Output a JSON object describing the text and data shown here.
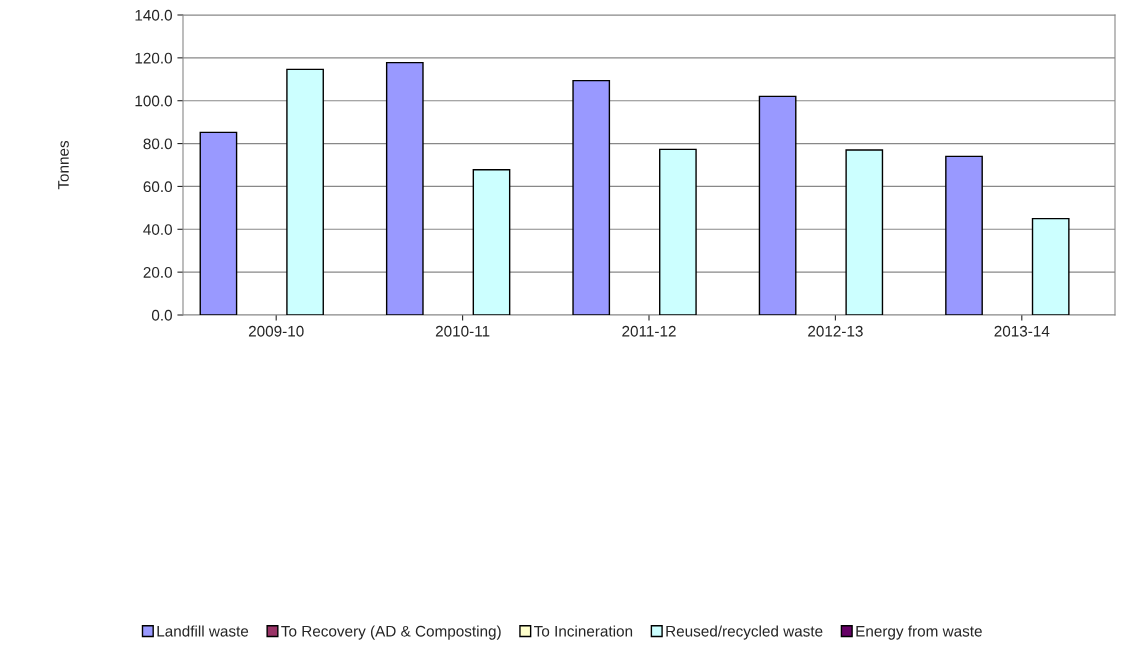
{
  "chart_data": {
    "type": "bar",
    "ylabel": "Tonnes",
    "categories": [
      "2009-10",
      "2010-11",
      "2011-12",
      "2012-13",
      "2013-14"
    ],
    "series": [
      {
        "name": "Landfill waste",
        "color": "#9999ff",
        "values": [
          85.2,
          117.8,
          109.4,
          102.0,
          74.0
        ]
      },
      {
        "name": "To Recovery (AD & Composting)",
        "color": "#993366",
        "values": [
          0,
          0,
          0,
          0,
          0
        ]
      },
      {
        "name": "To Incineration",
        "color": "#ffffcc",
        "values": [
          0,
          0,
          0,
          0,
          0
        ]
      },
      {
        "name": "Reused/recycled waste",
        "color": "#ccffff",
        "values": [
          114.6,
          67.8,
          77.3,
          77.0,
          45.0
        ]
      },
      {
        "name": "Energy from waste",
        "color": "#660066",
        "values": [
          0,
          0,
          0,
          0,
          0
        ]
      }
    ],
    "ylim": [
      0,
      140
    ],
    "yticks": [
      {
        "value": 0,
        "label": "0.0"
      },
      {
        "value": 20,
        "label": "20.0"
      },
      {
        "value": 40,
        "label": "40.0"
      },
      {
        "value": 60,
        "label": "60.0"
      },
      {
        "value": 80,
        "label": "80.0"
      },
      {
        "value": 100,
        "label": "100.0"
      },
      {
        "value": 120,
        "label": "120.0"
      },
      {
        "value": 140,
        "label": "140.0"
      }
    ],
    "grid": "y",
    "legend": "bottom"
  }
}
